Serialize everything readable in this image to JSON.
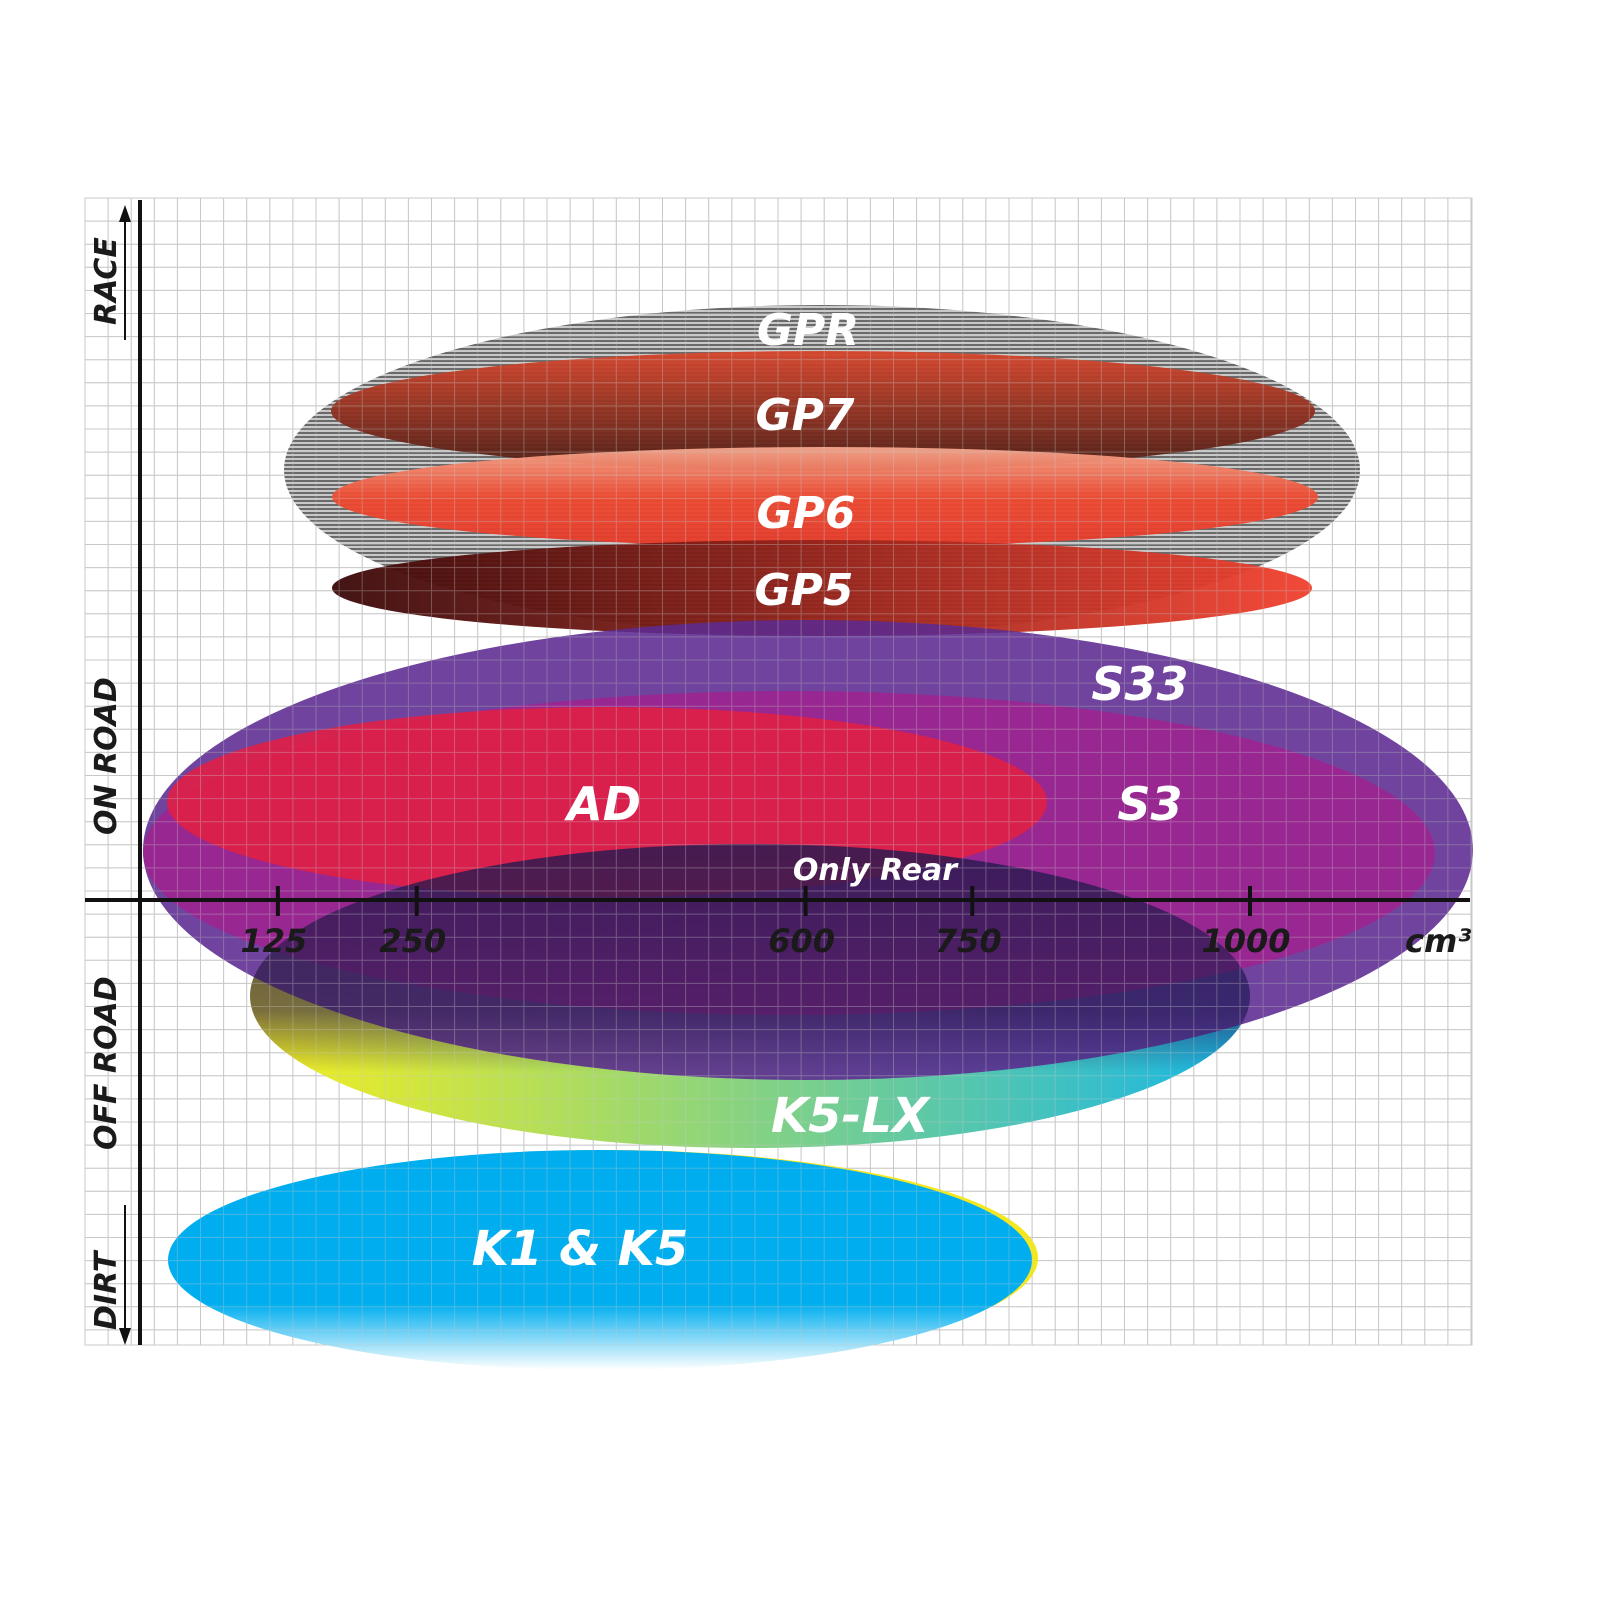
{
  "axis": {
    "x_unit": "cm³",
    "x_ticks": [
      125,
      250,
      600,
      750,
      1000
    ],
    "y_labels": {
      "race": "RACE",
      "on_road": "ON ROAD",
      "off_road": "OFF ROAD",
      "dirt": "DIRT"
    }
  },
  "products": {
    "gpr": {
      "label": "GPR",
      "color": "#8a8a8a"
    },
    "gp7": {
      "label": "GP7",
      "color": "#6b2a1e"
    },
    "gp6": {
      "label": "GP6",
      "color": "#e8442e"
    },
    "gp5": {
      "label": "GP5",
      "color": "#b0201a"
    },
    "s33": {
      "label": "S33",
      "color": "#5c2a91"
    },
    "s3": {
      "label": "S3",
      "color": "#a3208f"
    },
    "ad": {
      "label": "AD",
      "color": "#e01f45"
    },
    "only_rear": {
      "label": "Only Rear"
    },
    "k5lx": {
      "label": "K5-LX",
      "colors": [
        "#f7ef1c",
        "#15b6e8"
      ]
    },
    "k1k5": {
      "label": "K1 & K5",
      "color": "#00aeef"
    }
  }
}
